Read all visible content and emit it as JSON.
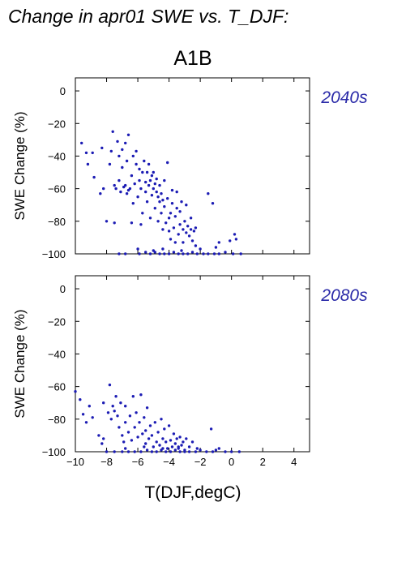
{
  "figure": {
    "title": "Change in apr01 SWE vs. T_DJF:",
    "scenario": "A1B",
    "x_label": "T(DJF,degC)",
    "point_color": "#1c1cb4",
    "period_color": "#2a2aa8"
  },
  "chart_data": [
    {
      "type": "scatter",
      "panel": "top",
      "period_label": "2040s",
      "ylabel": "SWE Change (%)",
      "xlabel": "",
      "xlim": [
        -10,
        5
      ],
      "ylim": [
        -100,
        8
      ],
      "x_ticks": [
        "−10",
        "−8",
        "−6",
        "−4",
        "−2",
        "0",
        "2",
        "4"
      ],
      "y_ticks": [
        "0",
        "−20",
        "−40",
        "−60",
        "−80",
        "−100"
      ],
      "grid": false,
      "points": [
        [
          -9.6,
          -32
        ],
        [
          -9.3,
          -38
        ],
        [
          -9.2,
          -45
        ],
        [
          -8.9,
          -38
        ],
        [
          -8.8,
          -53
        ],
        [
          -8.4,
          -63
        ],
        [
          -8.3,
          -35
        ],
        [
          -8.2,
          -60
        ],
        [
          -8.0,
          -80
        ],
        [
          -7.8,
          -45
        ],
        [
          -7.7,
          -37
        ],
        [
          -7.6,
          -25
        ],
        [
          -7.5,
          -58
        ],
        [
          -7.5,
          -81
        ],
        [
          -7.4,
          -60
        ],
        [
          -7.3,
          -31
        ],
        [
          -7.2,
          -40
        ],
        [
          -7.2,
          -55
        ],
        [
          -7.1,
          -62
        ],
        [
          -7.0,
          -47
        ],
        [
          -7.0,
          -36
        ],
        [
          -6.9,
          -59
        ],
        [
          -6.8,
          -58
        ],
        [
          -6.8,
          -32
        ],
        [
          -6.7,
          -43
        ],
        [
          -6.7,
          -63
        ],
        [
          -6.6,
          -61
        ],
        [
          -6.6,
          -27
        ],
        [
          -6.5,
          -60
        ],
        [
          -6.4,
          -52
        ],
        [
          -6.4,
          -81
        ],
        [
          -6.3,
          -40
        ],
        [
          -6.3,
          -69
        ],
        [
          -6.2,
          -57
        ],
        [
          -6.1,
          -37
        ],
        [
          -6.1,
          -45
        ],
        [
          -6.0,
          -65
        ],
        [
          -5.9,
          -48
        ],
        [
          -5.9,
          -55
        ],
        [
          -5.8,
          -60
        ],
        [
          -5.8,
          -82
        ],
        [
          -5.7,
          -50
        ],
        [
          -5.7,
          -75
        ],
        [
          -5.6,
          -43
        ],
        [
          -5.5,
          -56
        ],
        [
          -5.5,
          -62
        ],
        [
          -5.4,
          -50
        ],
        [
          -5.4,
          -68
        ],
        [
          -5.3,
          -58
        ],
        [
          -5.3,
          -45
        ],
        [
          -5.2,
          -55
        ],
        [
          -5.2,
          -78
        ],
        [
          -5.1,
          -52
        ],
        [
          -5.1,
          -64
        ],
        [
          -5.0,
          -60
        ],
        [
          -5.0,
          -50
        ],
        [
          -4.9,
          -57
        ],
        [
          -4.9,
          -72
        ],
        [
          -4.8,
          -62
        ],
        [
          -4.8,
          -54
        ],
        [
          -4.7,
          -65
        ],
        [
          -4.7,
          -80
        ],
        [
          -4.6,
          -68
        ],
        [
          -4.6,
          -58
        ],
        [
          -4.5,
          -75
        ],
        [
          -4.5,
          -63
        ],
        [
          -4.4,
          -67
        ],
        [
          -4.4,
          -85
        ],
        [
          -4.3,
          -55
        ],
        [
          -4.3,
          -71
        ],
        [
          -4.2,
          -81
        ],
        [
          -4.1,
          -44
        ],
        [
          -4.1,
          -66
        ],
        [
          -4.0,
          -86
        ],
        [
          -4.0,
          -78
        ],
        [
          -3.9,
          -75
        ],
        [
          -3.9,
          -91
        ],
        [
          -3.8,
          -61
        ],
        [
          -3.8,
          -69
        ],
        [
          -3.7,
          -84
        ],
        [
          -3.6,
          -77
        ],
        [
          -3.6,
          -93
        ],
        [
          -3.5,
          -72
        ],
        [
          -3.5,
          -62
        ],
        [
          -3.4,
          -88
        ],
        [
          -3.3,
          -74
        ],
        [
          -3.3,
          -82
        ],
        [
          -3.2,
          -68
        ],
        [
          -3.1,
          -85
        ],
        [
          -3.1,
          -93
        ],
        [
          -3.0,
          -80
        ],
        [
          -2.9,
          -70
        ],
        [
          -2.9,
          -87
        ],
        [
          -2.8,
          -83
        ],
        [
          -2.7,
          -89
        ],
        [
          -2.6,
          -78
        ],
        [
          -2.6,
          -85
        ],
        [
          -2.5,
          -92
        ],
        [
          -2.4,
          -86
        ],
        [
          -2.3,
          -84
        ],
        [
          -2.3,
          -95
        ],
        [
          -1.5,
          -63
        ],
        [
          -1.2,
          -69
        ],
        [
          -0.8,
          -93
        ],
        [
          -0.1,
          -92
        ],
        [
          0.2,
          -88
        ],
        [
          0.3,
          -91
        ],
        [
          -7.2,
          -100
        ],
        [
          -6.8,
          -100
        ],
        [
          -5.9,
          -100
        ],
        [
          -5.5,
          -99
        ],
        [
          -5.2,
          -100
        ],
        [
          -4.9,
          -99
        ],
        [
          -4.6,
          -100
        ],
        [
          -4.3,
          -100
        ],
        [
          -4.0,
          -100
        ],
        [
          -3.7,
          -99
        ],
        [
          -3.4,
          -100
        ],
        [
          -3.1,
          -100
        ],
        [
          -2.8,
          -100
        ],
        [
          -2.5,
          -99
        ],
        [
          -2.2,
          -100
        ],
        [
          -1.8,
          -100
        ],
        [
          -1.5,
          -100
        ],
        [
          -1.1,
          -100
        ],
        [
          -0.8,
          -100
        ],
        [
          -0.4,
          -99
        ],
        [
          0.1,
          -100
        ],
        [
          0.6,
          -100
        ],
        [
          -6.0,
          -97
        ],
        [
          -5.0,
          -98
        ],
        [
          -4.4,
          -97
        ],
        [
          -3.2,
          -98
        ],
        [
          -2.0,
          -97
        ],
        [
          -1.0,
          -96
        ]
      ]
    },
    {
      "type": "scatter",
      "panel": "bottom",
      "period_label": "2080s",
      "ylabel": "SWE Change (%)",
      "xlabel": "T(DJF,degC)",
      "xlim": [
        -10,
        5
      ],
      "ylim": [
        -100,
        8
      ],
      "x_ticks": [
        "−10",
        "−8",
        "−6",
        "−4",
        "−2",
        "0",
        "2",
        "4"
      ],
      "y_ticks": [
        "0",
        "−20",
        "−40",
        "−60",
        "−80",
        "−100"
      ],
      "grid": false,
      "points": [
        [
          -10.0,
          -63
        ],
        [
          -9.7,
          -68
        ],
        [
          -9.5,
          -77
        ],
        [
          -9.3,
          -82
        ],
        [
          -9.1,
          -72
        ],
        [
          -8.9,
          -79
        ],
        [
          -8.5,
          -90
        ],
        [
          -8.3,
          -95
        ],
        [
          -8.2,
          -70
        ],
        [
          -8.2,
          -92
        ],
        [
          -7.9,
          -76
        ],
        [
          -7.8,
          -59
        ],
        [
          -7.7,
          -80
        ],
        [
          -7.6,
          -72
        ],
        [
          -7.5,
          -75
        ],
        [
          -7.4,
          -66
        ],
        [
          -7.3,
          -78
        ],
        [
          -7.2,
          -85
        ],
        [
          -7.1,
          -70
        ],
        [
          -7.0,
          -90
        ],
        [
          -6.9,
          -94
        ],
        [
          -6.8,
          -72
        ],
        [
          -6.8,
          -82
        ],
        [
          -6.6,
          -88
        ],
        [
          -6.5,
          -78
        ],
        [
          -6.4,
          -93
        ],
        [
          -6.3,
          -66
        ],
        [
          -6.2,
          -85
        ],
        [
          -6.1,
          -76
        ],
        [
          -6.0,
          -91
        ],
        [
          -5.9,
          -82
        ],
        [
          -5.8,
          -65
        ],
        [
          -5.7,
          -89
        ],
        [
          -5.6,
          -79
        ],
        [
          -5.5,
          -95
        ],
        [
          -5.5,
          -87
        ],
        [
          -5.4,
          -73
        ],
        [
          -5.3,
          -92
        ],
        [
          -5.2,
          -84
        ],
        [
          -5.1,
          -90
        ],
        [
          -5.0,
          -97
        ],
        [
          -4.9,
          -82
        ],
        [
          -4.8,
          -94
        ],
        [
          -4.7,
          -88
        ],
        [
          -4.6,
          -96
        ],
        [
          -4.5,
          -80
        ],
        [
          -4.4,
          -92
        ],
        [
          -4.3,
          -86
        ],
        [
          -4.2,
          -94
        ],
        [
          -4.1,
          -98
        ],
        [
          -4.0,
          -84
        ],
        [
          -3.9,
          -93
        ],
        [
          -3.8,
          -97
        ],
        [
          -3.7,
          -89
        ],
        [
          -3.6,
          -95
        ],
        [
          -3.5,
          -92
        ],
        [
          -3.4,
          -98
        ],
        [
          -3.3,
          -91
        ],
        [
          -3.2,
          -96
        ],
        [
          -3.1,
          -94
        ],
        [
          -3.0,
          -99
        ],
        [
          -2.9,
          -92
        ],
        [
          -2.7,
          -97
        ],
        [
          -2.5,
          -94
        ],
        [
          -1.3,
          -86
        ],
        [
          -8.0,
          -100
        ],
        [
          -7.5,
          -100
        ],
        [
          -7.0,
          -100
        ],
        [
          -6.6,
          -100
        ],
        [
          -6.2,
          -100
        ],
        [
          -5.8,
          -100
        ],
        [
          -5.4,
          -99
        ],
        [
          -5.1,
          -100
        ],
        [
          -4.8,
          -100
        ],
        [
          -4.5,
          -99
        ],
        [
          -4.2,
          -100
        ],
        [
          -3.9,
          -100
        ],
        [
          -3.6,
          -99
        ],
        [
          -3.3,
          -100
        ],
        [
          -3.0,
          -100
        ],
        [
          -2.7,
          -100
        ],
        [
          -2.3,
          -100
        ],
        [
          -2.0,
          -99
        ],
        [
          -1.6,
          -100
        ],
        [
          -1.2,
          -100
        ],
        [
          -0.8,
          -98
        ],
        [
          -0.4,
          -100
        ],
        [
          0.0,
          -100
        ],
        [
          0.5,
          -100
        ],
        [
          -6.8,
          -98
        ],
        [
          -5.6,
          -97
        ],
        [
          -4.4,
          -98
        ],
        [
          -3.4,
          -97
        ],
        [
          -2.2,
          -98
        ],
        [
          -1.0,
          -99
        ]
      ]
    }
  ]
}
